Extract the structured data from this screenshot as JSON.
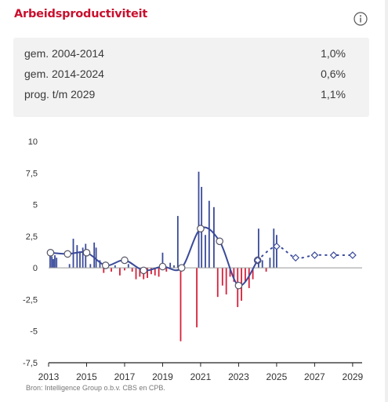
{
  "title": "Arbeidsproductiviteit",
  "info_icon": "info-circle-icon",
  "summary": [
    {
      "label": "gem. 2004-2014",
      "value": "1,0%"
    },
    {
      "label": "gem. 2014-2024",
      "value": "0,6%"
    },
    {
      "label": "prog. t/m 2029",
      "value": "1,1%"
    }
  ],
  "source": "Bron: Intelligence Group o.b.v. CBS en CPB.",
  "colors": {
    "positive": "#3a4a9a",
    "negative": "#d6203a",
    "line": "#3a4a9a",
    "accent": "#c8102e"
  },
  "chart_data": {
    "type": "bar+line",
    "ylim": [
      -7.5,
      10
    ],
    "xlim": [
      2013,
      2029.5
    ],
    "yticks": [
      {
        "v": 10,
        "label": "10"
      },
      {
        "v": 7.5,
        "label": "7,5"
      },
      {
        "v": 5,
        "label": "5"
      },
      {
        "v": 2.5,
        "label": "2,5"
      },
      {
        "v": 0,
        "label": "0"
      },
      {
        "v": -2.5,
        "label": "-2,5"
      },
      {
        "v": -5,
        "label": "-5"
      },
      {
        "v": -7.5,
        "label": "-7,5"
      }
    ],
    "xticks": [
      {
        "v": 2013,
        "label": "2013"
      },
      {
        "v": 2015,
        "label": "2015"
      },
      {
        "v": 2017,
        "label": "2017"
      },
      {
        "v": 2019,
        "label": "2019"
      },
      {
        "v": 2021,
        "label": "2021"
      },
      {
        "v": 2023,
        "label": "2023"
      },
      {
        "v": 2025,
        "label": "2025"
      },
      {
        "v": 2027,
        "label": "2027"
      },
      {
        "v": 2029,
        "label": "2029"
      }
    ],
    "bars": [
      {
        "x": 2013.08,
        "y": 1.2
      },
      {
        "x": 2013.17,
        "y": 0.9
      },
      {
        "x": 2013.25,
        "y": 0.7
      },
      {
        "x": 2013.33,
        "y": 1.0
      },
      {
        "x": 2013.42,
        "y": 0.8
      },
      {
        "x": 2014.1,
        "y": 0.3
      },
      {
        "x": 2014.3,
        "y": 2.3
      },
      {
        "x": 2014.5,
        "y": 1.8
      },
      {
        "x": 2014.65,
        "y": 1.3
      },
      {
        "x": 2014.8,
        "y": 1.6
      },
      {
        "x": 2014.95,
        "y": 1.9
      },
      {
        "x": 2015.2,
        "y": 0.3
      },
      {
        "x": 2015.4,
        "y": 2.0
      },
      {
        "x": 2015.5,
        "y": 1.6
      },
      {
        "x": 2015.7,
        "y": 0.6
      },
      {
        "x": 2015.9,
        "y": -0.4
      },
      {
        "x": 2016.1,
        "y": 0.2
      },
      {
        "x": 2016.3,
        "y": -0.3
      },
      {
        "x": 2016.5,
        "y": 0.2
      },
      {
        "x": 2016.75,
        "y": -0.6
      },
      {
        "x": 2017.0,
        "y": -0.2
      },
      {
        "x": 2017.2,
        "y": 0.3
      },
      {
        "x": 2017.4,
        "y": -0.3
      },
      {
        "x": 2017.6,
        "y": -0.9
      },
      {
        "x": 2017.8,
        "y": -0.7
      },
      {
        "x": 2018.0,
        "y": -0.9
      },
      {
        "x": 2018.2,
        "y": -0.8
      },
      {
        "x": 2018.4,
        "y": -0.5
      },
      {
        "x": 2018.6,
        "y": -0.6
      },
      {
        "x": 2018.8,
        "y": -0.7
      },
      {
        "x": 2019.0,
        "y": 1.2
      },
      {
        "x": 2019.2,
        "y": -0.3
      },
      {
        "x": 2019.4,
        "y": 0.4
      },
      {
        "x": 2019.6,
        "y": 0.2
      },
      {
        "x": 2019.8,
        "y": 4.1
      },
      {
        "x": 2019.95,
        "y": -5.8
      },
      {
        "x": 2020.8,
        "y": -4.7
      },
      {
        "x": 2020.9,
        "y": 7.6
      },
      {
        "x": 2021.05,
        "y": 6.4
      },
      {
        "x": 2021.25,
        "y": 2.6
      },
      {
        "x": 2021.45,
        "y": 5.3
      },
      {
        "x": 2021.7,
        "y": 4.8
      },
      {
        "x": 2021.9,
        "y": -2.3
      },
      {
        "x": 2022.15,
        "y": -1.4
      },
      {
        "x": 2022.35,
        "y": -2.1
      },
      {
        "x": 2022.55,
        "y": -0.7
      },
      {
        "x": 2022.75,
        "y": -1.1
      },
      {
        "x": 2022.95,
        "y": -3.1
      },
      {
        "x": 2023.15,
        "y": -2.6
      },
      {
        "x": 2023.35,
        "y": -1.1
      },
      {
        "x": 2023.55,
        "y": -1.6
      },
      {
        "x": 2023.75,
        "y": -0.9
      },
      {
        "x": 2024.05,
        "y": 3.1
      },
      {
        "x": 2024.25,
        "y": 0.6
      },
      {
        "x": 2024.45,
        "y": -0.3
      },
      {
        "x": 2024.65,
        "y": 0.8
      },
      {
        "x": 2024.85,
        "y": 3.1
      },
      {
        "x": 2025.0,
        "y": 2.6
      }
    ],
    "line_actual": [
      {
        "x": 2013.1,
        "y": 1.2
      },
      {
        "x": 2014.0,
        "y": 1.1
      },
      {
        "x": 2015.0,
        "y": 1.2
      },
      {
        "x": 2016.0,
        "y": 0.2
      },
      {
        "x": 2017.0,
        "y": 0.6
      },
      {
        "x": 2018.0,
        "y": -0.2
      },
      {
        "x": 2019.0,
        "y": 0.1
      },
      {
        "x": 2020.0,
        "y": 0.0
      },
      {
        "x": 2021.0,
        "y": 3.1
      },
      {
        "x": 2022.0,
        "y": 2.1
      },
      {
        "x": 2023.0,
        "y": -1.4
      },
      {
        "x": 2024.0,
        "y": 0.6
      }
    ],
    "line_actual_markers": [
      2013.1,
      2014.0,
      2015.0,
      2016.0,
      2017.0,
      2018.0,
      2019.0,
      2020.0,
      2021.0,
      2022.0,
      2023.0,
      2024.0
    ],
    "line_forecast": [
      {
        "x": 2024.0,
        "y": 0.6
      },
      {
        "x": 2025.0,
        "y": 1.7
      },
      {
        "x": 2026.0,
        "y": 0.8
      },
      {
        "x": 2027.0,
        "y": 1.0
      },
      {
        "x": 2028.0,
        "y": 1.0
      },
      {
        "x": 2029.0,
        "y": 1.0
      }
    ],
    "forecast_markers": [
      2024.0,
      2025.0,
      2026.0,
      2027.0,
      2028.0,
      2029.0
    ]
  }
}
